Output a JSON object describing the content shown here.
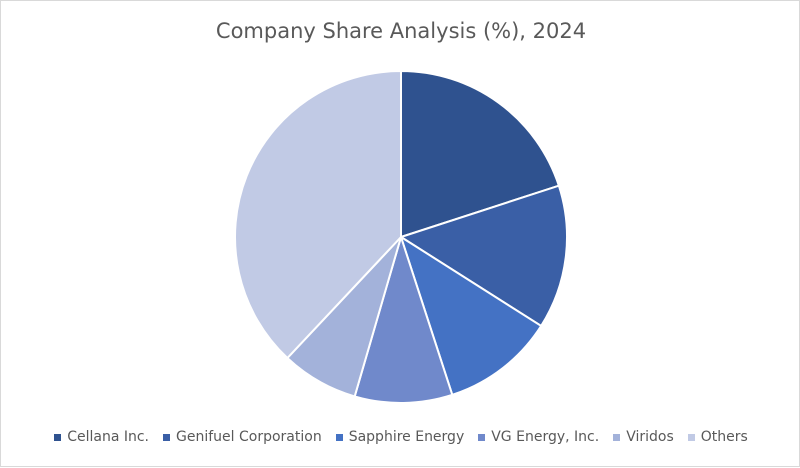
{
  "chart_data": {
    "type": "pie",
    "title": "Company Share Analysis (%), 2024",
    "categories": [
      "Cellana Inc.",
      "Genifuel Corporation",
      "Sapphire Energy",
      "VG Energy, Inc.",
      "Viridos",
      "Others"
    ],
    "values": [
      20,
      14,
      11,
      9.5,
      7.5,
      38
    ],
    "colors": [
      "#2f528f",
      "#3a5fa6",
      "#4472c4",
      "#7089cb",
      "#a3b2da",
      "#c1cae5"
    ],
    "legend_position": "bottom",
    "start_angle_deg": 0,
    "direction": "clockwise"
  }
}
